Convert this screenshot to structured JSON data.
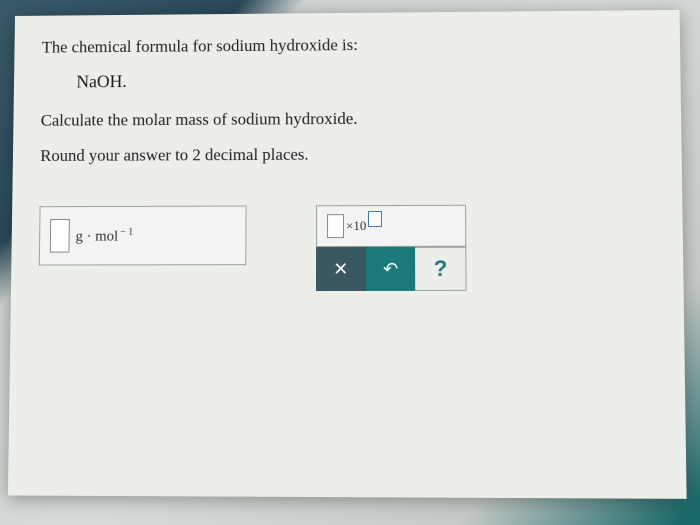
{
  "question": {
    "line1": "The chemical formula for sodium hydroxide is:",
    "formula": "NaOH.",
    "line2": "Calculate the molar mass of sodium hydroxide.",
    "line3": "Round your answer to 2 decimal places."
  },
  "answer_box": {
    "unit_base": "g · mol",
    "unit_exp": "− 1"
  },
  "sci_notation": {
    "times": "×10"
  },
  "buttons": {
    "clear": "✕",
    "undo": "↶",
    "help": "?"
  },
  "colors": {
    "panel_bg": "#eceee9",
    "border": "#9aa0a0",
    "btn_dark": "#3a5762",
    "btn_teal": "#1a7a7a"
  }
}
